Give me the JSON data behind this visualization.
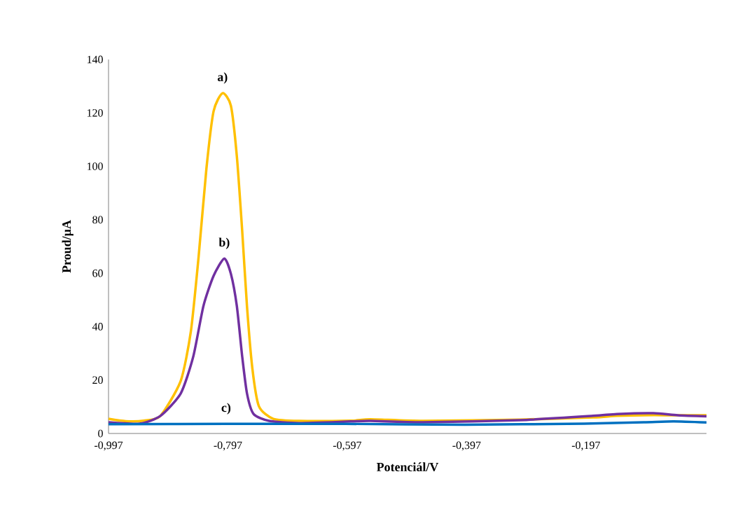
{
  "chart_data": {
    "type": "line",
    "xlabel": "Potenciál/V",
    "ylabel": "Proud/µA",
    "xlim": [
      -0.997,
      0.005
    ],
    "ylim": [
      0,
      140
    ],
    "xticks": [
      {
        "value": -0.997,
        "label": "-0,997"
      },
      {
        "value": -0.797,
        "label": "-0,797"
      },
      {
        "value": -0.597,
        "label": "-0,597"
      },
      {
        "value": -0.397,
        "label": "-0,397"
      },
      {
        "value": -0.197,
        "label": "-0,197"
      }
    ],
    "yticks": [
      0,
      20,
      40,
      60,
      80,
      100,
      120,
      140
    ],
    "grid": false,
    "legend": false,
    "marker": "none",
    "line_style": "solid",
    "series": [
      {
        "name": "a)",
        "color": "#ffc000",
        "x": [
          -0.997,
          -0.968,
          -0.938,
          -0.91,
          -0.876,
          -0.859,
          -0.846,
          -0.833,
          -0.821,
          -0.806,
          -0.792,
          -0.782,
          -0.773,
          -0.765,
          -0.756,
          -0.745,
          -0.721,
          -0.678,
          -0.591,
          -0.558,
          -0.47,
          -0.308,
          -0.185,
          -0.145,
          -0.084,
          -0.043,
          0.005
        ],
        "values": [
          5.5,
          4.6,
          4.8,
          6.6,
          19.7,
          38.3,
          66.3,
          99.1,
          120.6,
          127.4,
          122.7,
          103.8,
          75.8,
          47.7,
          24.4,
          10.2,
          5.5,
          4.7,
          4.8,
          5.3,
          4.7,
          5.2,
          6.0,
          6.6,
          6.9,
          6.8,
          6.8
        ]
      },
      {
        "name": "b)",
        "color": "#7030a0",
        "x": [
          -0.997,
          -0.945,
          -0.91,
          -0.876,
          -0.855,
          -0.838,
          -0.821,
          -0.803,
          -0.792,
          -0.782,
          -0.773,
          -0.765,
          -0.754,
          -0.728,
          -0.678,
          -0.591,
          -0.558,
          -0.47,
          -0.308,
          -0.185,
          -0.145,
          -0.084,
          -0.043,
          0.005
        ],
        "values": [
          4.2,
          3.7,
          6.6,
          15,
          28.8,
          47.7,
          59,
          65.5,
          59.8,
          47.7,
          28.8,
          15,
          7.3,
          4.7,
          3.9,
          4.5,
          4.7,
          4.2,
          5.0,
          6.6,
          7.3,
          7.6,
          6.8,
          6.4
        ]
      },
      {
        "name": "c)",
        "color": "#0070c0",
        "x": [
          -0.997,
          -0.8,
          -0.6,
          -0.4,
          -0.2,
          -0.1,
          -0.05,
          0.005
        ],
        "values": [
          3.5,
          3.6,
          3.6,
          3.3,
          3.7,
          4.2,
          4.5,
          4.1
        ]
      }
    ]
  }
}
